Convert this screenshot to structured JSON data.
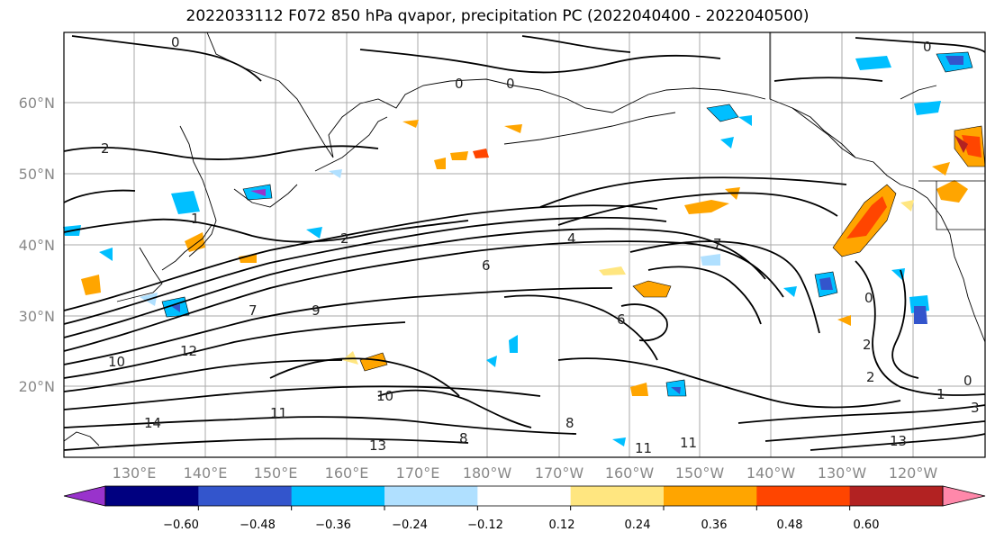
{
  "title": "2022033112 F072 850 hPa qvapor, precipitation PC (2022040400 - 2022040500)",
  "lat_labels": [
    "60°N",
    "50°N",
    "40°N",
    "30°N",
    "20°N"
  ],
  "lon_labels": [
    "130°E",
    "140°E",
    "150°E",
    "160°E",
    "170°E",
    "180°W",
    "170°W",
    "160°W",
    "150°W",
    "140°W",
    "130°W",
    "120°W"
  ],
  "colorbar": {
    "ticks": [
      "−0.60",
      "−0.48",
      "−0.36",
      "−0.24",
      "−0.12",
      "0.12",
      "0.24",
      "0.36",
      "0.48",
      "0.60"
    ],
    "colors": [
      "#9933cc",
      "#000080",
      "#3355cc",
      "#00bfff",
      "#b0e0ff",
      "#ffffff",
      "#ffe680",
      "#ffa500",
      "#ff4500",
      "#b22222",
      "#ff88aa"
    ]
  },
  "contour_labels": [
    "0",
    "0",
    "0",
    "0",
    "2",
    "2",
    "1",
    "4",
    "6",
    "7",
    "9",
    "10",
    "12",
    "14",
    "11",
    "13",
    "10",
    "8",
    "6",
    "7",
    "0",
    "2",
    "2",
    "1",
    "0",
    "11",
    "11",
    "13",
    "3",
    "8"
  ]
}
